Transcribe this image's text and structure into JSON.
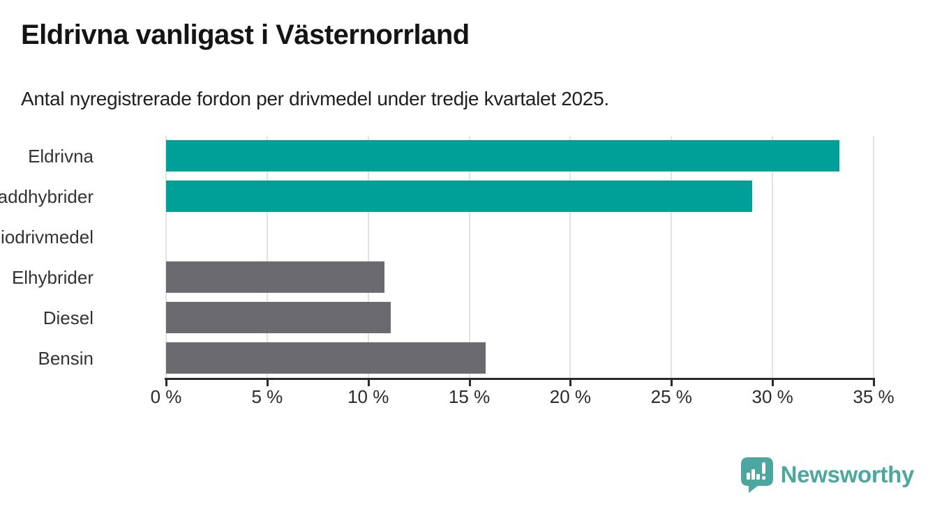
{
  "header": {
    "title": "Eldrivna vanligast i Västernorrland",
    "subtitle": "Antal nyregistrerade fordon per drivmedel under tredje kvartalet 2025."
  },
  "chart_data": {
    "type": "bar",
    "orientation": "horizontal",
    "categories": [
      "Eldrivna",
      "Laddhybrider",
      "Biodrivmedel",
      "Elhybrider",
      "Diesel",
      "Bensin"
    ],
    "values": [
      33.3,
      29.0,
      0,
      10.8,
      11.1,
      15.8
    ],
    "unit": "%",
    "bar_colors": [
      "#00A099",
      "#00A099",
      "#00A099",
      "#6B6A6F",
      "#6B6A6F",
      "#6B6A6F"
    ],
    "highlight_color": "#00A099",
    "default_color": "#6B6A6F",
    "xlabel": "",
    "ylabel": "",
    "axis": {
      "min": 0,
      "max": 35,
      "tick_step": 5,
      "tick_labels": [
        "0 %",
        "5 %",
        "10 %",
        "15 %",
        "20 %",
        "25 %",
        "30 %",
        "35 %"
      ]
    },
    "grid": "vertical",
    "legend": "none"
  },
  "footer": {
    "brand": "Newsworthy",
    "brand_color": "#4BA79F",
    "logo_icon": "newsworthy-speech-bubble-bar-chart-icon"
  },
  "colors": {
    "grid": "#E2E2E2",
    "axis": "#2B2B2B",
    "category_label": "#333333"
  }
}
